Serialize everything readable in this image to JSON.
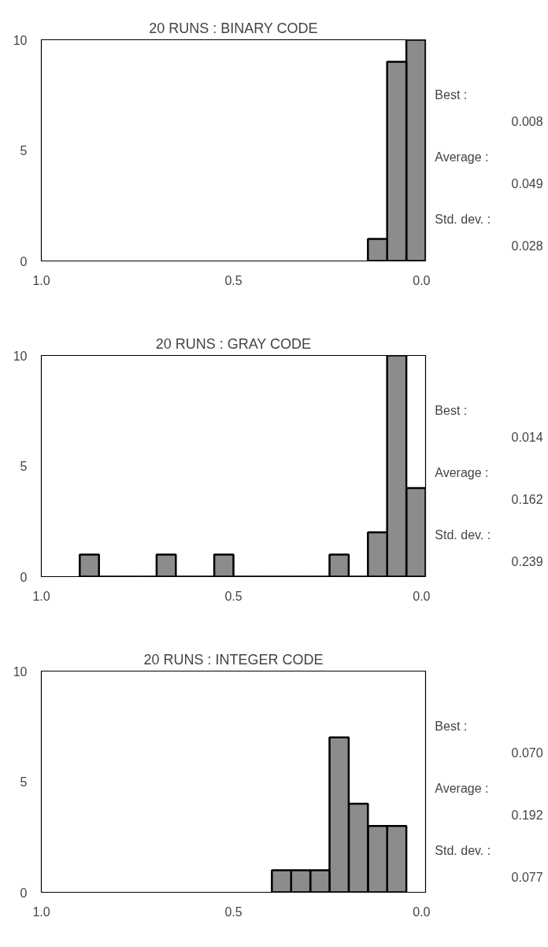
{
  "chart_data": [
    {
      "type": "histogram",
      "title": "20 RUNS : BINARY CODE",
      "bins": [
        0,
        0.05,
        0.1,
        0.15
      ],
      "values": [
        10,
        9,
        1
      ],
      "color": "#8c8c8c",
      "xlim": [
        1.0,
        0.0
      ],
      "ylim": [
        0,
        10
      ],
      "xticks": [
        {
          "value": 1.0,
          "label": "1.0"
        },
        {
          "value": 0.5,
          "label": "0.5"
        },
        {
          "value": 0.0,
          "label": "0.0"
        }
      ],
      "yticks": [
        0,
        5,
        10
      ],
      "annotations": [
        "Best :",
        "0.008",
        "Average :",
        "0.049",
        "Std. dev. :",
        "0.028"
      ]
    },
    {
      "type": "histogram",
      "title": "20 RUNS : GRAY CODE",
      "bins": [
        0,
        0.05,
        0.1,
        0.15,
        0.2,
        0.25,
        0.3,
        0.35,
        0.4,
        0.45,
        0.5,
        0.55,
        0.6,
        0.65,
        0.7,
        0.75,
        0.8,
        0.85,
        0.9
      ],
      "values": [
        4,
        10,
        2,
        0,
        1,
        0,
        0,
        0,
        0,
        0,
        1,
        0,
        0,
        1,
        0,
        0,
        0,
        1
      ],
      "color": "#8c8c8c",
      "xlim": [
        1.0,
        0.0
      ],
      "ylim": [
        0,
        10
      ],
      "xticks": [
        {
          "value": 1.0,
          "label": "1.0"
        },
        {
          "value": 0.5,
          "label": "0.5"
        },
        {
          "value": 0.0,
          "label": "0.0"
        }
      ],
      "yticks": [
        0,
        5,
        10
      ],
      "annotations": [
        "Best :",
        "0.014",
        "Average :",
        "0.162",
        "Std. dev. :",
        "0.239"
      ]
    },
    {
      "type": "histogram",
      "title": "20 RUNS : INTEGER CODE",
      "bins": [
        0.05,
        0.1,
        0.15,
        0.2,
        0.25,
        0.3,
        0.35,
        0.4
      ],
      "values": [
        3,
        3,
        4,
        7,
        1,
        1,
        1
      ],
      "color": "#8c8c8c",
      "xlim": [
        1.0,
        0.0
      ],
      "ylim": [
        0,
        10
      ],
      "xticks": [
        {
          "value": 1.0,
          "label": "1.0"
        },
        {
          "value": 0.5,
          "label": "0.5"
        },
        {
          "value": 0.0,
          "label": "0.0"
        }
      ],
      "yticks": [
        0,
        5,
        10
      ],
      "annotations": [
        "Best :",
        "0.070",
        "Average :",
        "0.192",
        "Std. dev. :",
        "0.077"
      ]
    }
  ]
}
